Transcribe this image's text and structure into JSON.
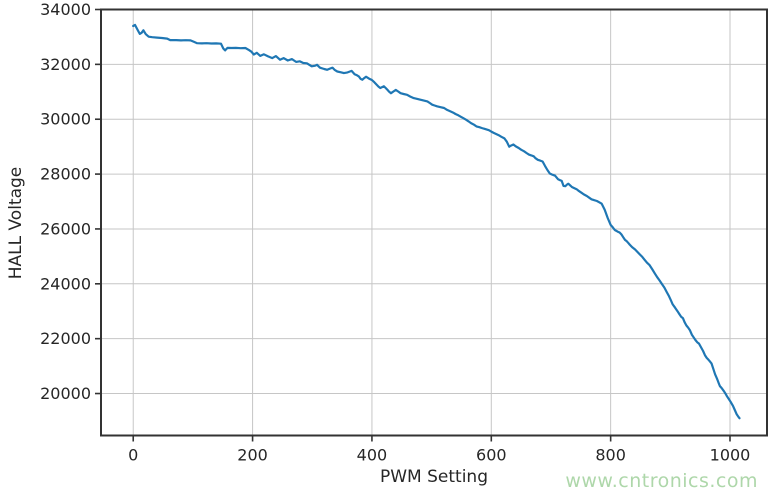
{
  "watermark": {
    "text": "www.cntronics.com",
    "color": "#aed7aa"
  },
  "chart_data": {
    "type": "line",
    "title": "",
    "xlabel": "PWM Setting",
    "ylabel": "HALL Voltage",
    "xlim": [
      -54,
      1062
    ],
    "ylim": [
      18470,
      34000
    ],
    "xticks": [
      0,
      200,
      400,
      600,
      800,
      1000
    ],
    "yticks": [
      20000,
      22000,
      24000,
      26000,
      28000,
      30000,
      32000,
      34000
    ],
    "grid": true,
    "legend_position": "none",
    "line_color": "#1f77b4",
    "grid_color": "#c6c6c6",
    "spine_color": "#333333",
    "tick_color": "#262626",
    "series": [
      {
        "name": "HALL Voltage vs PWM Setting",
        "x": [
          0,
          3,
          8,
          11,
          14,
          17,
          21,
          26,
          32,
          40,
          48,
          57,
          62,
          72,
          80,
          88,
          96,
          102,
          107,
          115,
          123,
          131,
          139,
          147,
          151,
          154,
          158,
          165,
          172,
          180,
          188,
          194,
          198,
          202,
          207,
          213,
          219,
          226,
          233,
          239,
          246,
          252,
          259,
          266,
          273,
          279,
          285,
          291,
          299,
          305,
          308,
          313,
          320,
          325,
          330,
          334,
          338,
          342,
          348,
          353,
          358,
          363,
          366,
          371,
          375,
          378,
          381,
          384,
          387,
          390,
          395,
          400,
          404,
          408,
          411,
          414,
          417,
          420,
          423,
          426,
          429,
          432,
          436,
          440,
          444,
          448,
          453,
          459,
          464,
          470,
          476,
          481,
          487,
          493,
          497,
          501,
          505,
          509,
          515,
          521,
          526,
          532,
          536,
          540,
          545,
          549,
          553,
          558,
          562,
          566,
          571,
          575,
          580,
          584,
          590,
          596,
          600,
          604,
          608,
          612,
          617,
          622,
          626,
          630,
          633,
          637,
          641,
          646,
          650,
          655,
          659,
          663,
          667,
          671,
          674,
          678,
          682,
          686,
          690,
          694,
          698,
          702,
          707,
          712,
          715,
          718,
          721,
          724,
          727,
          729,
          732,
          735,
          739,
          743,
          747,
          751,
          755,
          760,
          764,
          768,
          772,
          777,
          781,
          785,
          790,
          795,
          800,
          804,
          807,
          812,
          815,
          818,
          821,
          824,
          827,
          830,
          832,
          836,
          841,
          845,
          849,
          853,
          857,
          861,
          865,
          870,
          874,
          878,
          882,
          886,
          890,
          894,
          898,
          901,
          904,
          908,
          912,
          915,
          918,
          921,
          924,
          927,
          930,
          933,
          936,
          939,
          942,
          945,
          948,
          951,
          955,
          958,
          961,
          964,
          966,
          969,
          972,
          975,
          978,
          981,
          983,
          986,
          990,
          993,
          995,
          998,
          1001,
          1005,
          1008,
          1011,
          1014,
          1016
        ],
        "y": [
          33400,
          33440,
          33230,
          33110,
          33150,
          33240,
          33100,
          33010,
          32990,
          32975,
          32960,
          32940,
          32885,
          32885,
          32875,
          32880,
          32875,
          32820,
          32770,
          32765,
          32770,
          32760,
          32765,
          32755,
          32580,
          32510,
          32600,
          32595,
          32600,
          32590,
          32595,
          32520,
          32460,
          32360,
          32420,
          32310,
          32365,
          32290,
          32230,
          32300,
          32170,
          32230,
          32140,
          32190,
          32090,
          32110,
          32050,
          32040,
          31930,
          31950,
          31985,
          31880,
          31830,
          31800,
          31850,
          31880,
          31790,
          31740,
          31710,
          31680,
          31700,
          31740,
          31760,
          31640,
          31600,
          31560,
          31470,
          31440,
          31500,
          31550,
          31480,
          31430,
          31350,
          31260,
          31190,
          31140,
          31170,
          31200,
          31140,
          31070,
          31000,
          30950,
          31010,
          31070,
          31010,
          30950,
          30920,
          30890,
          30830,
          30770,
          30740,
          30710,
          30680,
          30650,
          30590,
          30530,
          30500,
          30470,
          30440,
          30410,
          30340,
          30280,
          30240,
          30190,
          30140,
          30090,
          30040,
          29980,
          29920,
          29860,
          29800,
          29740,
          29710,
          29680,
          29640,
          29600,
          29550,
          29500,
          29460,
          29420,
          29360,
          29300,
          29180,
          29000,
          29040,
          29080,
          29010,
          28950,
          28890,
          28830,
          28770,
          28710,
          28680,
          28650,
          28580,
          28520,
          28490,
          28460,
          28300,
          28150,
          28020,
          27980,
          27940,
          27810,
          27780,
          27750,
          27570,
          27560,
          27620,
          27650,
          27590,
          27530,
          27490,
          27450,
          27380,
          27320,
          27260,
          27200,
          27140,
          27080,
          27050,
          27020,
          26970,
          26920,
          26700,
          26400,
          26150,
          26050,
          25960,
          25900,
          25870,
          25800,
          25700,
          25600,
          25550,
          25480,
          25430,
          25340,
          25250,
          25160,
          25070,
          24980,
          24870,
          24770,
          24690,
          24520,
          24380,
          24240,
          24120,
          23990,
          23860,
          23700,
          23540,
          23400,
          23250,
          23130,
          23000,
          22900,
          22800,
          22750,
          22600,
          22480,
          22400,
          22300,
          22150,
          22050,
          21950,
          21870,
          21820,
          21700,
          21550,
          21400,
          21300,
          21230,
          21180,
          21100,
          20900,
          20700,
          20550,
          20380,
          20270,
          20200,
          20080,
          19980,
          19900,
          19800,
          19700,
          19550,
          19400,
          19250,
          19150,
          19100
        ]
      }
    ]
  }
}
